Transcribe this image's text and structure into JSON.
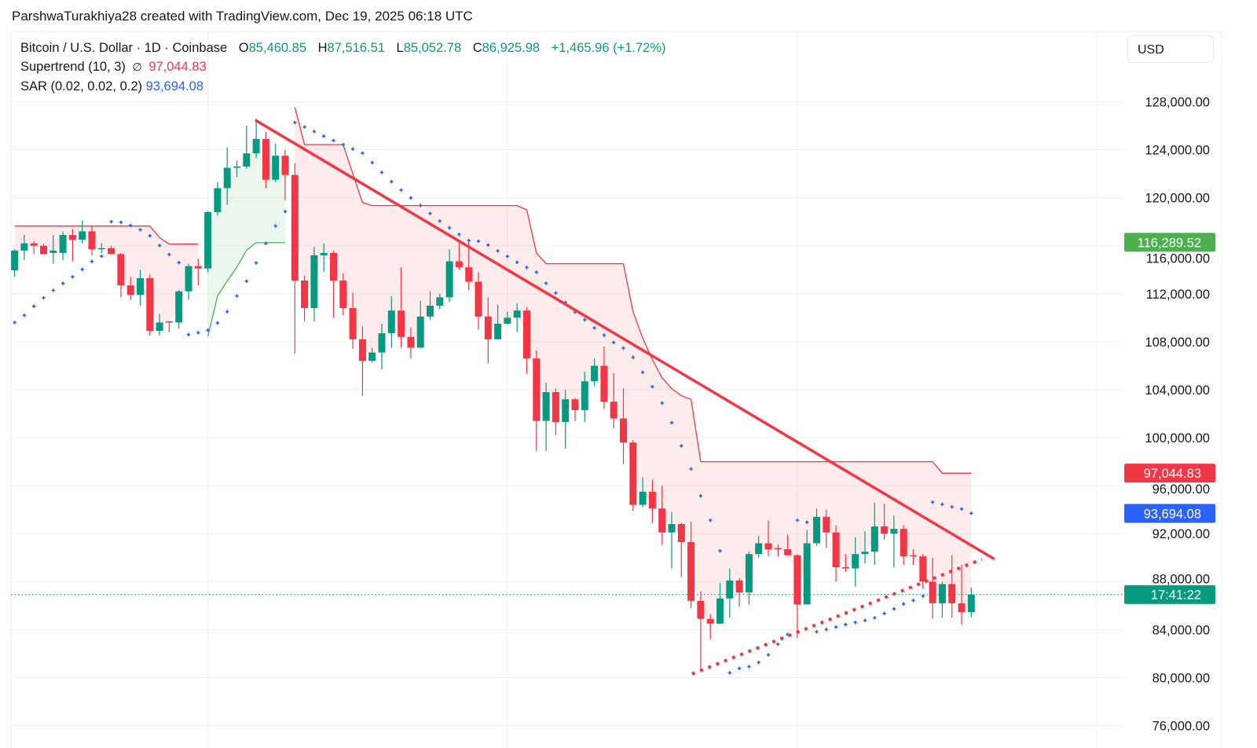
{
  "header": {
    "attribution": "ParshwaTurakhiya28 created with TradingView.com, Dec 19, 2025 06:18 UTC"
  },
  "legend": {
    "symbol": "Bitcoin / U.S. Dollar · 1D · Coinbase",
    "o_label": "O",
    "o": "85,460.85",
    "h_label": "H",
    "h": "87,516.51",
    "l_label": "L",
    "l": "85,052.78",
    "c_label": "C",
    "c": "86,925.98",
    "change": "+1,465.96 (+1.72%)",
    "supertrend_label": "Supertrend (10, 3)",
    "supertrend_icon": "∅",
    "supertrend_value": "97,044.83",
    "sar_label": "SAR (0.02, 0.02, 0.2)",
    "sar_value": "93,694.08"
  },
  "currency_button": "USD",
  "colors": {
    "up": "#089981",
    "down": "#F23645",
    "sar": "#2962FF",
    "supertrend_up": "#4CAF50",
    "supertrend_down": "#F23645",
    "trendline": "#F23645"
  },
  "chart_data": {
    "type": "candlestick",
    "interval": "1D",
    "ylim": [
      76000,
      128000
    ],
    "y_ticks": [
      "128,000.00",
      "124,000.00",
      "120,000.00",
      "116,000.00",
      "112,000.00",
      "108,000.00",
      "104,000.00",
      "100,000.00",
      "96,000.00",
      "92,000.00",
      "88,000.00",
      "84,000.00",
      "80,000.00",
      "76,000.00"
    ],
    "y_tick_values": [
      128000,
      124000,
      120000,
      116000,
      112000,
      108000,
      104000,
      100000,
      96000,
      92000,
      88000,
      84000,
      80000,
      76000
    ],
    "grid": true,
    "ohlc_order": [
      "open",
      "high",
      "low",
      "close"
    ],
    "candles": [
      [
        113950,
        115700,
        113400,
        115600
      ],
      [
        115600,
        116900,
        114800,
        116200
      ],
      [
        116200,
        116400,
        115300,
        116000
      ],
      [
        116000,
        116200,
        115300,
        115300
      ],
      [
        115400,
        116900,
        114500,
        115600
      ],
      [
        115400,
        117200,
        114800,
        116900
      ],
      [
        116900,
        117400,
        114700,
        116500
      ],
      [
        116500,
        118100,
        116200,
        117200
      ],
      [
        117200,
        117600,
        115200,
        115700
      ],
      [
        115700,
        116200,
        115400,
        115800
      ],
      [
        115800,
        116000,
        115300,
        115300
      ],
      [
        115300,
        115400,
        111700,
        112700
      ],
      [
        112700,
        113400,
        111500,
        111900
      ],
      [
        111900,
        114000,
        111000,
        113300
      ],
      [
        113300,
        113600,
        108500,
        108900
      ],
      [
        108900,
        110300,
        108500,
        109600
      ],
      [
        109700,
        109700,
        108800,
        109600
      ],
      [
        109600,
        112300,
        109100,
        112200
      ],
      [
        112200,
        114500,
        111500,
        114300
      ],
      [
        114300,
        114900,
        112700,
        114100
      ],
      [
        114100,
        118900,
        113800,
        118800
      ],
      [
        118800,
        121300,
        118500,
        120800
      ],
      [
        120800,
        124200,
        119400,
        122500
      ],
      [
        122500,
        123100,
        121700,
        122600
      ],
      [
        122600,
        126000,
        122400,
        123700
      ],
      [
        123700,
        126600,
        123300,
        124900
      ],
      [
        124900,
        125500,
        120800,
        121500
      ],
      [
        121500,
        124500,
        121300,
        123500
      ],
      [
        123500,
        124000,
        119800,
        121900
      ],
      [
        121900,
        122900,
        107000,
        113100
      ],
      [
        113100,
        113500,
        109700,
        110800
      ],
      [
        110800,
        115900,
        109700,
        115200
      ],
      [
        115200,
        116200,
        113800,
        115400
      ],
      [
        115400,
        115600,
        110000,
        113100
      ],
      [
        113100,
        113700,
        110200,
        110800
      ],
      [
        110800,
        112100,
        107400,
        108200
      ],
      [
        108200,
        109300,
        103500,
        106400
      ],
      [
        106400,
        107500,
        106300,
        107100
      ],
      [
        107100,
        109500,
        105700,
        108700
      ],
      [
        108700,
        111800,
        107500,
        110600
      ],
      [
        110600,
        114200,
        107500,
        108400
      ],
      [
        108400,
        109200,
        106600,
        107500
      ],
      [
        107500,
        111400,
        107500,
        110100
      ],
      [
        110100,
        112200,
        109800,
        111000
      ],
      [
        111000,
        112000,
        110700,
        111700
      ],
      [
        111700,
        115700,
        111300,
        114700
      ],
      [
        114700,
        116300,
        114000,
        114200
      ],
      [
        114200,
        116300,
        112300,
        113000
      ],
      [
        113000,
        113800,
        109000,
        110100
      ],
      [
        110100,
        111700,
        106200,
        108200
      ],
      [
        108200,
        111100,
        108200,
        109500
      ],
      [
        109500,
        110500,
        109400,
        110000
      ],
      [
        110000,
        111200,
        108800,
        110600
      ],
      [
        110600,
        110900,
        105300,
        106600
      ],
      [
        106600,
        107300,
        98900,
        101400
      ],
      [
        101400,
        104600,
        98900,
        103800
      ],
      [
        103800,
        104100,
        100200,
        101300
      ],
      [
        101300,
        104000,
        99100,
        103200
      ],
      [
        103200,
        103300,
        101400,
        102300
      ],
      [
        102300,
        105500,
        101300,
        104700
      ],
      [
        104700,
        106600,
        104300,
        106000
      ],
      [
        106000,
        107600,
        102400,
        103000
      ],
      [
        103000,
        105400,
        100800,
        101600
      ],
      [
        101600,
        104100,
        97800,
        99600
      ],
      [
        99600,
        99800,
        93900,
        94400
      ],
      [
        94400,
        96700,
        94200,
        95500
      ],
      [
        95500,
        96500,
        92900,
        94100
      ],
      [
        94100,
        96000,
        91100,
        92100
      ],
      [
        92100,
        93800,
        89100,
        92800
      ],
      [
        92800,
        92900,
        88400,
        91300
      ],
      [
        91300,
        93000,
        85800,
        86400
      ],
      [
        86400,
        87200,
        80500,
        84900
      ],
      [
        84900,
        85300,
        83200,
        84500
      ],
      [
        84500,
        87900,
        84500,
        86600
      ],
      [
        86600,
        89100,
        85000,
        88100
      ],
      [
        88100,
        88300,
        85900,
        87100
      ],
      [
        87100,
        90500,
        86100,
        90300
      ],
      [
        90300,
        91800,
        90000,
        91200
      ],
      [
        91200,
        93100,
        90100,
        90700
      ],
      [
        90800,
        91100,
        90100,
        90700
      ],
      [
        90700,
        91900,
        90200,
        90200
      ],
      [
        90200,
        90300,
        83300,
        86100
      ],
      [
        86100,
        92300,
        86100,
        91200
      ],
      [
        91200,
        94100,
        91000,
        93400
      ],
      [
        93400,
        94000,
        90800,
        92100
      ],
      [
        92100,
        92700,
        88000,
        89200
      ],
      [
        89200,
        90300,
        88800,
        89100
      ],
      [
        89100,
        91700,
        87600,
        90300
      ],
      [
        90300,
        92200,
        89500,
        90500
      ],
      [
        90500,
        94600,
        89400,
        92600
      ],
      [
        92600,
        94500,
        91500,
        92000
      ],
      [
        92000,
        93500,
        89200,
        92400
      ],
      [
        92400,
        92700,
        89400,
        90100
      ],
      [
        90200,
        90700,
        89400,
        90100
      ],
      [
        90100,
        90300,
        87400,
        88000
      ],
      [
        88000,
        90000,
        84900,
        86200
      ],
      [
        86200,
        88000,
        85000,
        87800
      ],
      [
        87800,
        90200,
        85000,
        86200
      ],
      [
        86200,
        89400,
        84400,
        85460.85
      ],
      [
        85460.85,
        87516.51,
        85052.78,
        86925.98
      ]
    ],
    "supertrend": [
      {
        "trend": "down",
        "start_candle": 1,
        "values": [
          117640,
          117640,
          117640,
          117640,
          117640,
          117640,
          117640,
          117640,
          117640,
          117640,
          117640,
          117640,
          117640,
          117640,
          117640,
          116680,
          116140,
          116140,
          116140,
          116140
        ]
      },
      {
        "trend": "up",
        "start_candle": 21,
        "values": [
          108440,
          111820,
          113040,
          114220,
          115610,
          116250,
          116250,
          116250,
          116250
        ]
      },
      {
        "trend": "down",
        "start_candle": 30,
        "values": [
          127550,
          124430,
          124430,
          124430,
          124430,
          124430,
          122000,
          119600,
          119350,
          119350,
          119350,
          119350,
          119350,
          119350,
          119350,
          119350,
          119350,
          119350,
          119350,
          119350,
          119350,
          119350,
          119350,
          119350,
          119000,
          115400,
          114500,
          114500,
          114500,
          114500,
          114500,
          114500,
          114500,
          114500,
          114500,
          110500,
          108300,
          106500,
          105000,
          104100,
          103500,
          103200,
          98000,
          98000,
          98000,
          98000,
          98000,
          98000,
          98000,
          98000,
          98000,
          98000,
          98000,
          98000,
          98000,
          98000,
          98000,
          98000,
          98000,
          98000,
          98000,
          98000,
          98000,
          98000,
          98000,
          98000,
          98000,
          97044.83,
          97044.83,
          97044.83,
          97044.83
        ]
      }
    ],
    "sar": [
      109600,
      110200,
      110950,
      111660,
      112280,
      112860,
      113410,
      114030,
      114690,
      115120,
      118010,
      117950,
      117690,
      117330,
      116830,
      116020,
      115270,
      114590,
      108600,
      108750,
      108960,
      109560,
      110500,
      111810,
      113050,
      114570,
      116190,
      117650,
      118850,
      126270,
      125900,
      125520,
      125130,
      124770,
      124430,
      124060,
      123720,
      122930,
      122110,
      121340,
      120640,
      119990,
      119350,
      118690,
      118050,
      117490,
      116940,
      116430,
      116380,
      116060,
      115570,
      115110,
      114620,
      114190,
      113790,
      112870,
      112060,
      111280,
      110470,
      109830,
      109150,
      108550,
      107940,
      107470,
      106700,
      105450,
      104250,
      102890,
      101250,
      99320,
      97400,
      95150,
      93120,
      90570,
      80400,
      80770,
      80920,
      81260,
      81900,
      82790,
      83600,
      93120,
      92950,
      83820,
      84010,
      84220,
      84430,
      84600,
      84770,
      84990,
      85350,
      85730,
      86140,
      86440,
      86800,
      94620,
      94450,
      94230,
      94060,
      93694.08
    ],
    "trendlines": [
      {
        "style": "solid",
        "from": {
          "candle": 26,
          "price": 126430
        },
        "to": {
          "candle": 102.3,
          "price": 89930
        }
      },
      {
        "style": "dotted",
        "from": {
          "candle": 71.1,
          "price": 80310
        },
        "to": {
          "candle": 101.1,
          "price": 89870
        }
      }
    ],
    "last_price": 86925.98,
    "axis_badges": [
      {
        "text": "116,289.52",
        "price": 116289.52,
        "color": "#4CAF50"
      },
      {
        "text": "97,044.83",
        "price": 97044.83,
        "color": "#F23645"
      },
      {
        "text": "93,694.08",
        "price": 93694.08,
        "color": "#2962FF"
      },
      {
        "text": "17:41:22",
        "price": 86925.98,
        "color": "#089981"
      }
    ]
  }
}
